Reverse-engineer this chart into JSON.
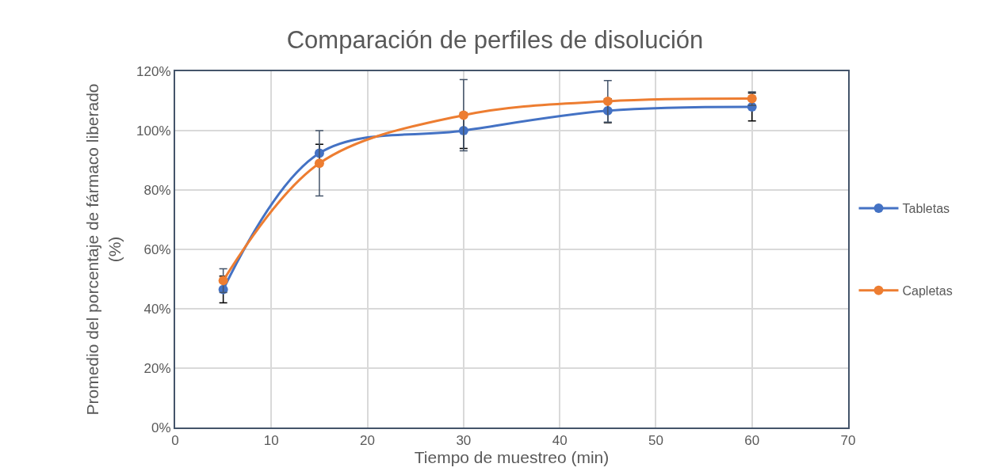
{
  "chart_data": {
    "type": "line",
    "title": "Comparación de perfiles de disolución",
    "xlabel": "Tiempo de muestreo (min)",
    "ylabel": "Promedio del porcentaje de fármaco liberado (%)",
    "x": [
      5,
      15,
      30,
      45,
      60
    ],
    "series": [
      {
        "name": "Tabletas",
        "color": "#4472c4",
        "values": [
          46.5,
          92.4,
          100,
          106.7,
          108
        ],
        "errors": [
          4.5,
          3,
          6,
          4,
          4.7
        ]
      },
      {
        "name": "Capletas",
        "color": "#ed7d31",
        "values": [
          49.5,
          89,
          105.2,
          109.9,
          110.8
        ],
        "errors": [
          4,
          11,
          12,
          7,
          2.3
        ]
      }
    ],
    "xlim": [
      0,
      70
    ],
    "xticks": [
      0,
      10,
      20,
      30,
      40,
      50,
      60,
      70
    ],
    "ylim": [
      0,
      120
    ],
    "yticks": [
      {
        "value": 0,
        "label": "0%"
      },
      {
        "value": 20,
        "label": "20%"
      },
      {
        "value": 40,
        "label": "40%"
      },
      {
        "value": 60,
        "label": "60%"
      },
      {
        "value": 80,
        "label": "80%"
      },
      {
        "value": 100,
        "label": "100%"
      },
      {
        "value": 120,
        "label": "120%"
      }
    ],
    "grid": true,
    "legend": "right",
    "marker": "circle",
    "line_style": "solid"
  }
}
